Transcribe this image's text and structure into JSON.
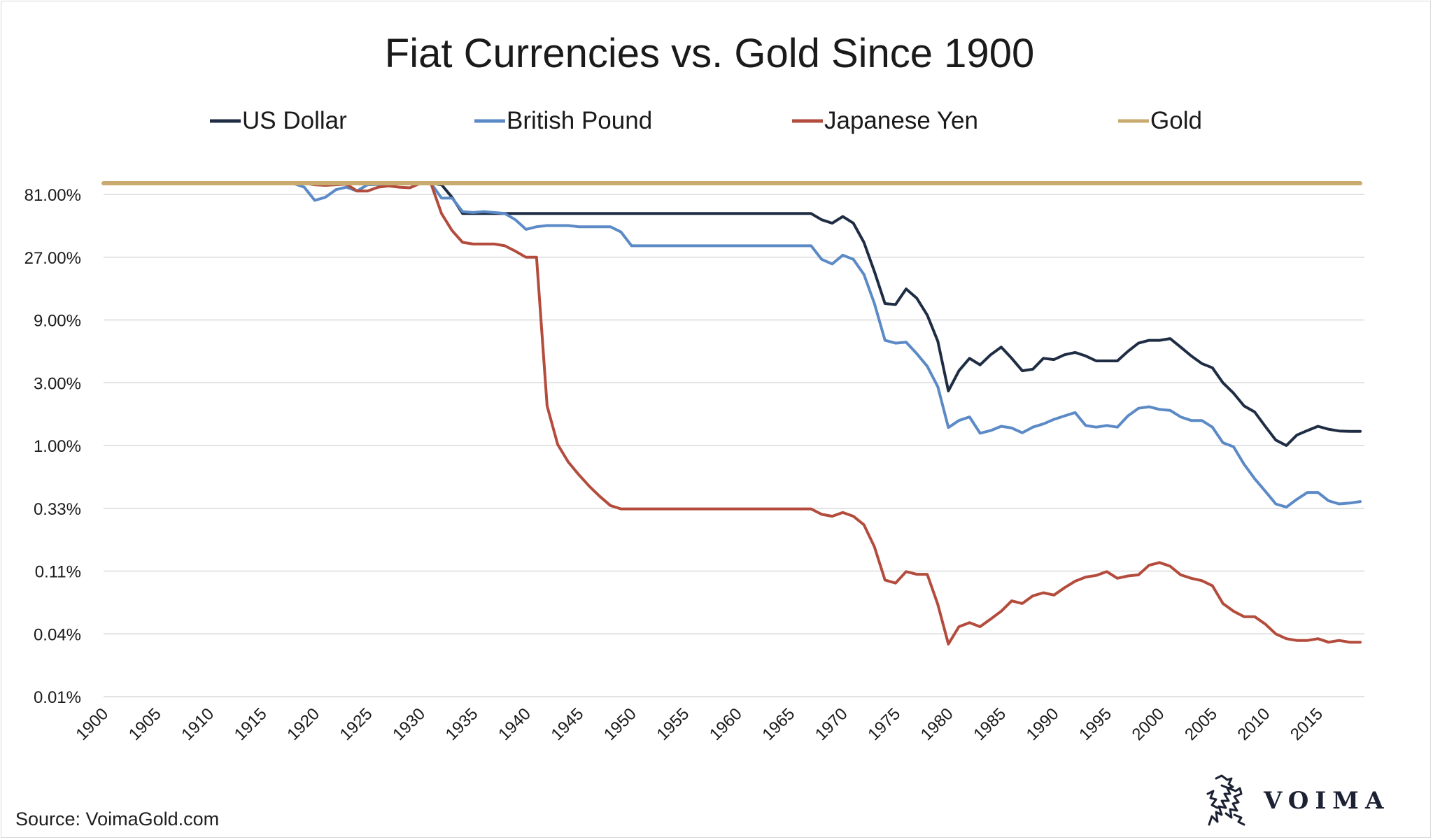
{
  "chart_data": {
    "type": "line",
    "title": "Fiat Currencies vs. Gold Since 1900",
    "xlabel": "",
    "ylabel": "",
    "yscale": "log",
    "ylim": [
      0.01,
      200
    ],
    "y_ticks": [
      {
        "value": 81,
        "label": "81.00%"
      },
      {
        "value": 27,
        "label": "27.00%"
      },
      {
        "value": 9,
        "label": "9.00%"
      },
      {
        "value": 3,
        "label": "3.00%"
      },
      {
        "value": 1,
        "label": "1.00%"
      },
      {
        "value": 0.33,
        "label": "0.33%"
      },
      {
        "value": 0.11,
        "label": "0.11%"
      },
      {
        "value": 0.037,
        "label": "0.04%"
      },
      {
        "value": 0.012,
        "label": "0.01%"
      }
    ],
    "x_ticks": [
      "1900",
      "1905",
      "1910",
      "1915",
      "1920",
      "1925",
      "1930",
      "1935",
      "1940",
      "1945",
      "1950",
      "1955",
      "1960",
      "1965",
      "1970",
      "1975",
      "1980",
      "1985",
      "1990",
      "1995",
      "2000",
      "2005",
      "2010",
      "2015"
    ],
    "xlim": [
      1900,
      2019
    ],
    "grid": true,
    "legend_position": "top",
    "series": [
      {
        "name": "US Dollar",
        "color": "#1f2d44",
        "points": [
          [
            1900,
            100
          ],
          [
            1914,
            100
          ],
          [
            1917,
            100
          ],
          [
            1931,
            100
          ],
          [
            1932,
            96
          ],
          [
            1933,
            77
          ],
          [
            1934,
            58
          ],
          [
            1966,
            58
          ],
          [
            1967,
            58
          ],
          [
            1968,
            52
          ],
          [
            1969,
            49
          ],
          [
            1970,
            55
          ],
          [
            1971,
            49
          ],
          [
            1972,
            35
          ],
          [
            1973,
            21
          ],
          [
            1974,
            12
          ],
          [
            1975,
            11.8
          ],
          [
            1976,
            15.5
          ],
          [
            1977,
            13.2
          ],
          [
            1978,
            9.8
          ],
          [
            1979,
            6.2
          ],
          [
            1980,
            2.6
          ],
          [
            1981,
            3.7
          ],
          [
            1982,
            4.6
          ],
          [
            1983,
            4.1
          ],
          [
            1984,
            4.9
          ],
          [
            1985,
            5.6
          ],
          [
            1986,
            4.6
          ],
          [
            1987,
            3.7
          ],
          [
            1988,
            3.8
          ],
          [
            1989,
            4.6
          ],
          [
            1990,
            4.5
          ],
          [
            1991,
            4.9
          ],
          [
            1992,
            5.1
          ],
          [
            1993,
            4.8
          ],
          [
            1994,
            4.4
          ],
          [
            1995,
            4.4
          ],
          [
            1996,
            4.4
          ],
          [
            1997,
            5.2
          ],
          [
            1998,
            6.0
          ],
          [
            1999,
            6.3
          ],
          [
            2000,
            6.3
          ],
          [
            2001,
            6.5
          ],
          [
            2002,
            5.6
          ],
          [
            2003,
            4.8
          ],
          [
            2004,
            4.2
          ],
          [
            2005,
            3.9
          ],
          [
            2006,
            3.0
          ],
          [
            2007,
            2.5
          ],
          [
            2008,
            2.0
          ],
          [
            2009,
            1.8
          ],
          [
            2010,
            1.4
          ],
          [
            2011,
            1.1
          ],
          [
            2012,
            1.0
          ],
          [
            2013,
            1.2
          ],
          [
            2014,
            1.3
          ],
          [
            2015,
            1.4
          ],
          [
            2016,
            1.33
          ],
          [
            2017,
            1.29
          ],
          [
            2018,
            1.28
          ],
          [
            2019,
            1.28
          ]
        ]
      },
      {
        "name": "British Pound",
        "color": "#5b8ac6",
        "points": [
          [
            1900,
            100
          ],
          [
            1914,
            100
          ],
          [
            1915,
            98
          ],
          [
            1916,
            100
          ],
          [
            1917,
            99
          ],
          [
            1918,
            98
          ],
          [
            1919,
            92
          ],
          [
            1920,
            73
          ],
          [
            1921,
            77
          ],
          [
            1922,
            88
          ],
          [
            1923,
            92
          ],
          [
            1924,
            86
          ],
          [
            1925,
            96
          ],
          [
            1930,
            100
          ],
          [
            1931,
            100
          ],
          [
            1932,
            76
          ],
          [
            1933,
            76
          ],
          [
            1934,
            60
          ],
          [
            1935,
            59
          ],
          [
            1936,
            60
          ],
          [
            1937,
            59
          ],
          [
            1938,
            58
          ],
          [
            1939,
            52
          ],
          [
            1940,
            44
          ],
          [
            1941,
            46
          ],
          [
            1942,
            47
          ],
          [
            1943,
            47
          ],
          [
            1944,
            47
          ],
          [
            1945,
            46
          ],
          [
            1946,
            46
          ],
          [
            1947,
            46
          ],
          [
            1948,
            46
          ],
          [
            1949,
            42
          ],
          [
            1950,
            33
          ],
          [
            1967,
            33
          ],
          [
            1968,
            26
          ],
          [
            1969,
            24
          ],
          [
            1970,
            28
          ],
          [
            1971,
            26
          ],
          [
            1972,
            20
          ],
          [
            1973,
            12
          ],
          [
            1974,
            6.3
          ],
          [
            1975,
            6.0
          ],
          [
            1976,
            6.1
          ],
          [
            1977,
            5.0
          ],
          [
            1978,
            4.0
          ],
          [
            1979,
            2.8
          ],
          [
            1980,
            1.37
          ],
          [
            1981,
            1.55
          ],
          [
            1982,
            1.65
          ],
          [
            1983,
            1.24
          ],
          [
            1984,
            1.3
          ],
          [
            1985,
            1.4
          ],
          [
            1986,
            1.36
          ],
          [
            1987,
            1.25
          ],
          [
            1988,
            1.38
          ],
          [
            1989,
            1.46
          ],
          [
            1990,
            1.58
          ],
          [
            1991,
            1.68
          ],
          [
            1992,
            1.78
          ],
          [
            1993,
            1.42
          ],
          [
            1994,
            1.38
          ],
          [
            1995,
            1.42
          ],
          [
            1996,
            1.38
          ],
          [
            1997,
            1.68
          ],
          [
            1998,
            1.92
          ],
          [
            1999,
            1.97
          ],
          [
            2000,
            1.88
          ],
          [
            2001,
            1.85
          ],
          [
            2002,
            1.65
          ],
          [
            2003,
            1.55
          ],
          [
            2004,
            1.55
          ],
          [
            2005,
            1.38
          ],
          [
            2006,
            1.05
          ],
          [
            2007,
            0.98
          ],
          [
            2008,
            0.72
          ],
          [
            2009,
            0.56
          ],
          [
            2010,
            0.45
          ],
          [
            2011,
            0.36
          ],
          [
            2012,
            0.34
          ],
          [
            2013,
            0.39
          ],
          [
            2014,
            0.44
          ],
          [
            2015,
            0.44
          ],
          [
            2016,
            0.38
          ],
          [
            2017,
            0.36
          ],
          [
            2018,
            0.365
          ],
          [
            2019,
            0.375
          ]
        ]
      },
      {
        "name": "Japanese Yen",
        "color": "#b34c3c",
        "points": [
          [
            1900,
            100
          ],
          [
            1916,
            100
          ],
          [
            1917,
            104
          ],
          [
            1918,
            102
          ],
          [
            1919,
            100
          ],
          [
            1920,
            96
          ],
          [
            1921,
            95
          ],
          [
            1922,
            96
          ],
          [
            1923,
            97
          ],
          [
            1924,
            86
          ],
          [
            1925,
            86
          ],
          [
            1926,
            92
          ],
          [
            1927,
            94
          ],
          [
            1928,
            92
          ],
          [
            1929,
            91
          ],
          [
            1930,
            100
          ],
          [
            1931,
            98
          ],
          [
            1932,
            58
          ],
          [
            1933,
            43
          ],
          [
            1934,
            35
          ],
          [
            1935,
            34
          ],
          [
            1936,
            34
          ],
          [
            1937,
            34
          ],
          [
            1938,
            33
          ],
          [
            1939,
            30
          ],
          [
            1940,
            27
          ],
          [
            1941,
            27
          ],
          [
            1942,
            2.0
          ],
          [
            1943,
            1.02
          ],
          [
            1944,
            0.75
          ],
          [
            1945,
            0.6
          ],
          [
            1946,
            0.49
          ],
          [
            1947,
            0.41
          ],
          [
            1948,
            0.35
          ],
          [
            1949,
            0.33
          ],
          [
            1967,
            0.33
          ],
          [
            1968,
            0.3
          ],
          [
            1969,
            0.29
          ],
          [
            1970,
            0.31
          ],
          [
            1971,
            0.29
          ],
          [
            1972,
            0.25
          ],
          [
            1973,
            0.17
          ],
          [
            1974,
            0.095
          ],
          [
            1975,
            0.09
          ],
          [
            1976,
            0.11
          ],
          [
            1977,
            0.105
          ],
          [
            1978,
            0.105
          ],
          [
            1979,
            0.062
          ],
          [
            1980,
            0.031
          ],
          [
            1981,
            0.042
          ],
          [
            1982,
            0.045
          ],
          [
            1983,
            0.042
          ],
          [
            1984,
            0.048
          ],
          [
            1985,
            0.055
          ],
          [
            1986,
            0.066
          ],
          [
            1987,
            0.063
          ],
          [
            1988,
            0.072
          ],
          [
            1989,
            0.076
          ],
          [
            1990,
            0.073
          ],
          [
            1991,
            0.083
          ],
          [
            1992,
            0.093
          ],
          [
            1993,
            0.1
          ],
          [
            1994,
            0.103
          ],
          [
            1995,
            0.11
          ],
          [
            1996,
            0.098
          ],
          [
            1997,
            0.102
          ],
          [
            1998,
            0.104
          ],
          [
            1999,
            0.123
          ],
          [
            2000,
            0.129
          ],
          [
            2001,
            0.121
          ],
          [
            2002,
            0.104
          ],
          [
            2003,
            0.098
          ],
          [
            2004,
            0.094
          ],
          [
            2005,
            0.086
          ],
          [
            2006,
            0.063
          ],
          [
            2007,
            0.055
          ],
          [
            2008,
            0.05
          ],
          [
            2009,
            0.05
          ],
          [
            2010,
            0.044
          ],
          [
            2011,
            0.037
          ],
          [
            2012,
            0.034
          ],
          [
            2013,
            0.033
          ],
          [
            2014,
            0.033
          ],
          [
            2015,
            0.034
          ],
          [
            2016,
            0.032
          ],
          [
            2017,
            0.033
          ],
          [
            2018,
            0.032
          ],
          [
            2019,
            0.032
          ]
        ]
      },
      {
        "name": "Gold",
        "color": "#c9ab70",
        "points": [
          [
            1900,
            100
          ],
          [
            2019,
            100
          ]
        ]
      }
    ]
  },
  "footer": {
    "source": "Source: VoimaGold.com",
    "logo_text": "VOIMA"
  }
}
